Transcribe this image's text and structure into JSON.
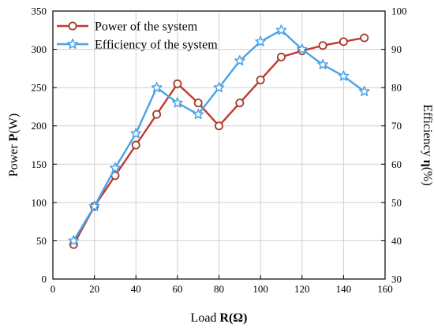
{
  "chart_data": {
    "type": "line",
    "x": [
      10,
      20,
      30,
      40,
      50,
      60,
      70,
      80,
      90,
      100,
      110,
      120,
      130,
      140,
      150
    ],
    "xlim": [
      0,
      160
    ],
    "x_ticks": [
      0,
      20,
      40,
      60,
      80,
      100,
      120,
      140,
      160
    ],
    "xlabel": {
      "prefix": "Load ",
      "bold": "R(Ω)"
    },
    "left_axis": {
      "label": {
        "prefix": "Power ",
        "bold": "P",
        "suffix": "(W)"
      },
      "ylim": [
        0,
        350
      ],
      "ticks": [
        0,
        50,
        100,
        150,
        200,
        250,
        300,
        350
      ]
    },
    "right_axis": {
      "label": {
        "prefix": "Efficiency ",
        "bold": "η",
        "suffix": "(%)"
      },
      "ylim": [
        30,
        100
      ],
      "ticks": [
        30,
        40,
        50,
        60,
        70,
        80,
        90,
        100
      ]
    },
    "series": [
      {
        "name": "Power of the system",
        "axis": "left",
        "marker": "circle",
        "line_color": "#c0392b",
        "marker_edge": "#a23b2a",
        "values": [
          45,
          95,
          135,
          175,
          215,
          255,
          230,
          200,
          230,
          260,
          290,
          298,
          305,
          310,
          315
        ]
      },
      {
        "name": "Efficiency of the system",
        "axis": "right",
        "marker": "star",
        "line_color": "#4aa3e8",
        "marker_edge": "#4aa3e8",
        "values": [
          40,
          49,
          59,
          68,
          80,
          76,
          73,
          80,
          87,
          92,
          95,
          90,
          86,
          83,
          79
        ]
      }
    ],
    "grid": true,
    "legend_position": "top-left"
  }
}
